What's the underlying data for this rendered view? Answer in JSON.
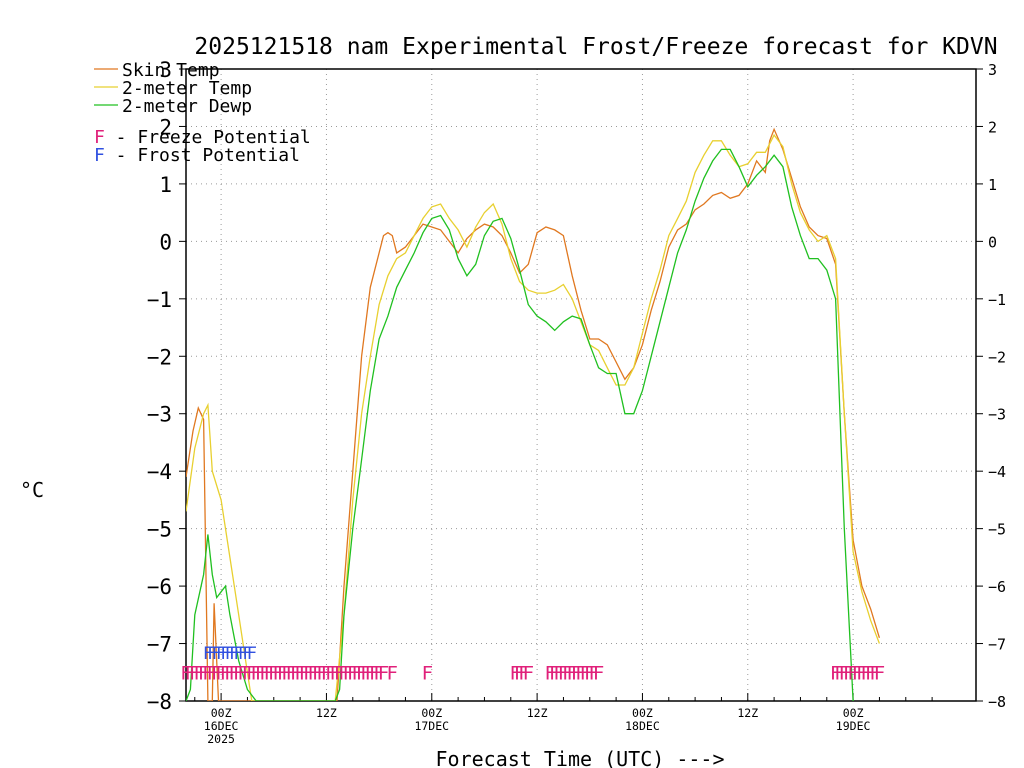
{
  "chart_data": {
    "type": "line",
    "title": "2025121518 nam Experimental Frost/Freeze forecast for KDVN",
    "ylabel": "°C",
    "xlabel": "Forecast Time (UTC) --->",
    "ylim": [
      -8,
      3
    ],
    "yticks": [
      3,
      2,
      1,
      0,
      -1,
      -2,
      -3,
      -4,
      -5,
      -6,
      -7,
      -8
    ],
    "xlim": [
      -4,
      86
    ],
    "xticks": [
      {
        "x": 0,
        "lines": [
          "00Z",
          "16DEC",
          "2025"
        ]
      },
      {
        "x": 12,
        "lines": [
          "12Z"
        ]
      },
      {
        "x": 24,
        "lines": [
          "00Z",
          "17DEC"
        ]
      },
      {
        "x": 36,
        "lines": [
          "12Z"
        ]
      },
      {
        "x": 48,
        "lines": [
          "00Z",
          "18DEC"
        ]
      },
      {
        "x": 60,
        "lines": [
          "12Z"
        ]
      },
      {
        "x": 72,
        "lines": [
          "00Z",
          "19DEC"
        ]
      }
    ],
    "grid": true,
    "series": [
      {
        "name": "Skin Temp",
        "color": "#e07820",
        "points": [
          [
            -4,
            -4.1
          ],
          [
            -3.2,
            -3.3
          ],
          [
            -2.6,
            -2.9
          ],
          [
            -2,
            -3.1
          ],
          [
            -1.5,
            -8
          ],
          [
            -1,
            -8
          ],
          [
            -0.8,
            -6.3
          ],
          [
            -0.3,
            -8
          ],
          [
            1,
            -8
          ],
          [
            2,
            -8
          ],
          [
            3,
            -8
          ],
          [
            4,
            -8
          ],
          [
            6,
            -8
          ],
          [
            8,
            -8
          ],
          [
            10,
            -8
          ],
          [
            11,
            -8
          ],
          [
            12,
            -8
          ],
          [
            13.2,
            -8
          ],
          [
            14,
            -6
          ],
          [
            15,
            -4
          ],
          [
            16,
            -2
          ],
          [
            17,
            -0.8
          ],
          [
            18,
            -0.2
          ],
          [
            18.5,
            0.1
          ],
          [
            19,
            0.15
          ],
          [
            19.5,
            0.1
          ],
          [
            20,
            -0.2
          ],
          [
            21,
            -0.1
          ],
          [
            22,
            0.1
          ],
          [
            23,
            0.3
          ],
          [
            24,
            0.25
          ],
          [
            25,
            0.2
          ],
          [
            26,
            0.0
          ],
          [
            27,
            -0.2
          ],
          [
            28,
            0.05
          ],
          [
            29,
            0.2
          ],
          [
            30,
            0.3
          ],
          [
            31,
            0.25
          ],
          [
            32,
            0.1
          ],
          [
            33,
            -0.2
          ],
          [
            34,
            -0.55
          ],
          [
            35,
            -0.4
          ],
          [
            36,
            0.15
          ],
          [
            37,
            0.25
          ],
          [
            38,
            0.2
          ],
          [
            39,
            0.1
          ],
          [
            40,
            -0.6
          ],
          [
            41,
            -1.2
          ],
          [
            42,
            -1.7
          ],
          [
            43,
            -1.7
          ],
          [
            44,
            -1.8
          ],
          [
            45,
            -2.1
          ],
          [
            46,
            -2.4
          ],
          [
            47,
            -2.2
          ],
          [
            48,
            -1.8
          ],
          [
            49,
            -1.2
          ],
          [
            50,
            -0.7
          ],
          [
            51,
            -0.1
          ],
          [
            52,
            0.2
          ],
          [
            53,
            0.3
          ],
          [
            54,
            0.55
          ],
          [
            55,
            0.65
          ],
          [
            56,
            0.8
          ],
          [
            57,
            0.85
          ],
          [
            58,
            0.75
          ],
          [
            59,
            0.8
          ],
          [
            60,
            1.0
          ],
          [
            61,
            1.4
          ],
          [
            62,
            1.2
          ],
          [
            62.5,
            1.75
          ],
          [
            63,
            1.95
          ],
          [
            64,
            1.6
          ],
          [
            65,
            1.1
          ],
          [
            66,
            0.6
          ],
          [
            67,
            0.25
          ],
          [
            68,
            0.1
          ],
          [
            69,
            0.05
          ],
          [
            70,
            -0.4
          ],
          [
            71,
            -3.0
          ],
          [
            72,
            -5.2
          ],
          [
            73,
            -6.0
          ],
          [
            74,
            -6.4
          ],
          [
            75,
            -6.9
          ]
        ]
      },
      {
        "name": "2-meter Temp",
        "color": "#e8d030",
        "points": [
          [
            -4,
            -4.7
          ],
          [
            -3,
            -3.6
          ],
          [
            -2,
            -3.0
          ],
          [
            -1.5,
            -2.85
          ],
          [
            -1,
            -4.0
          ],
          [
            0,
            -4.5
          ],
          [
            1,
            -5.5
          ],
          [
            2,
            -6.5
          ],
          [
            3,
            -7.5
          ],
          [
            3.5,
            -8
          ],
          [
            5,
            -8
          ],
          [
            8,
            -8
          ],
          [
            11,
            -8
          ],
          [
            12,
            -8
          ],
          [
            13,
            -8
          ],
          [
            14,
            -6.5
          ],
          [
            15,
            -4.5
          ],
          [
            16,
            -3.0
          ],
          [
            17,
            -2.0
          ],
          [
            18,
            -1.1
          ],
          [
            19,
            -0.6
          ],
          [
            20,
            -0.3
          ],
          [
            21,
            -0.2
          ],
          [
            22,
            0.1
          ],
          [
            23,
            0.4
          ],
          [
            24,
            0.6
          ],
          [
            25,
            0.65
          ],
          [
            26,
            0.4
          ],
          [
            27,
            0.2
          ],
          [
            28,
            -0.1
          ],
          [
            29,
            0.25
          ],
          [
            30,
            0.5
          ],
          [
            31,
            0.65
          ],
          [
            32,
            0.3
          ],
          [
            33,
            -0.3
          ],
          [
            34,
            -0.7
          ],
          [
            35,
            -0.85
          ],
          [
            36,
            -0.9
          ],
          [
            37,
            -0.9
          ],
          [
            38,
            -0.85
          ],
          [
            39,
            -0.75
          ],
          [
            40,
            -1.0
          ],
          [
            41,
            -1.4
          ],
          [
            42,
            -1.8
          ],
          [
            43,
            -1.9
          ],
          [
            44,
            -2.2
          ],
          [
            45,
            -2.5
          ],
          [
            46,
            -2.5
          ],
          [
            47,
            -2.2
          ],
          [
            48,
            -1.6
          ],
          [
            49,
            -1.0
          ],
          [
            50,
            -0.5
          ],
          [
            51,
            0.1
          ],
          [
            52,
            0.4
          ],
          [
            53,
            0.7
          ],
          [
            54,
            1.2
          ],
          [
            55,
            1.5
          ],
          [
            56,
            1.75
          ],
          [
            57,
            1.75
          ],
          [
            58,
            1.5
          ],
          [
            59,
            1.3
          ],
          [
            60,
            1.35
          ],
          [
            61,
            1.55
          ],
          [
            62,
            1.55
          ],
          [
            63,
            1.85
          ],
          [
            64,
            1.65
          ],
          [
            65,
            1.0
          ],
          [
            66,
            0.5
          ],
          [
            67,
            0.2
          ],
          [
            68,
            0.0
          ],
          [
            69,
            0.1
          ],
          [
            70,
            -0.3
          ],
          [
            71,
            -3.0
          ],
          [
            72,
            -5.4
          ],
          [
            73,
            -6.1
          ],
          [
            74,
            -6.6
          ],
          [
            75,
            -7.0
          ]
        ]
      },
      {
        "name": "2-meter Dewp",
        "color": "#20c020",
        "points": [
          [
            -4,
            -8
          ],
          [
            -3.5,
            -7.8
          ],
          [
            -3,
            -6.5
          ],
          [
            -2,
            -5.8
          ],
          [
            -1.5,
            -5.1
          ],
          [
            -1,
            -5.8
          ],
          [
            -0.5,
            -6.2
          ],
          [
            0,
            -6.1
          ],
          [
            0.5,
            -6.0
          ],
          [
            1,
            -6.5
          ],
          [
            2,
            -7.3
          ],
          [
            3,
            -7.8
          ],
          [
            4,
            -8
          ],
          [
            6,
            -8
          ],
          [
            9,
            -8
          ],
          [
            12,
            -8
          ],
          [
            13,
            -8
          ],
          [
            13.5,
            -7.8
          ],
          [
            14,
            -6.5
          ],
          [
            15,
            -5.0
          ],
          [
            16,
            -3.8
          ],
          [
            17,
            -2.6
          ],
          [
            18,
            -1.7
          ],
          [
            19,
            -1.3
          ],
          [
            20,
            -0.8
          ],
          [
            21,
            -0.5
          ],
          [
            22,
            -0.2
          ],
          [
            23,
            0.15
          ],
          [
            24,
            0.4
          ],
          [
            25,
            0.45
          ],
          [
            26,
            0.2
          ],
          [
            27,
            -0.3
          ],
          [
            28,
            -0.6
          ],
          [
            29,
            -0.4
          ],
          [
            30,
            0.1
          ],
          [
            31,
            0.35
          ],
          [
            32,
            0.4
          ],
          [
            33,
            0.05
          ],
          [
            34,
            -0.5
          ],
          [
            35,
            -1.1
          ],
          [
            36,
            -1.3
          ],
          [
            37,
            -1.4
          ],
          [
            38,
            -1.55
          ],
          [
            39,
            -1.4
          ],
          [
            40,
            -1.3
          ],
          [
            41,
            -1.35
          ],
          [
            42,
            -1.8
          ],
          [
            43,
            -2.2
          ],
          [
            44,
            -2.3
          ],
          [
            45,
            -2.3
          ],
          [
            46,
            -3.0
          ],
          [
            47,
            -3.0
          ],
          [
            48,
            -2.6
          ],
          [
            49,
            -2.0
          ],
          [
            50,
            -1.4
          ],
          [
            51,
            -0.8
          ],
          [
            52,
            -0.2
          ],
          [
            53,
            0.2
          ],
          [
            54,
            0.7
          ],
          [
            55,
            1.1
          ],
          [
            56,
            1.4
          ],
          [
            57,
            1.6
          ],
          [
            58,
            1.6
          ],
          [
            59,
            1.3
          ],
          [
            60,
            0.95
          ],
          [
            61,
            1.15
          ],
          [
            62,
            1.3
          ],
          [
            63,
            1.5
          ],
          [
            64,
            1.3
          ],
          [
            65,
            0.6
          ],
          [
            66,
            0.1
          ],
          [
            67,
            -0.3
          ],
          [
            68,
            -0.3
          ],
          [
            69,
            -0.5
          ],
          [
            70,
            -1.0
          ],
          [
            71,
            -5.0
          ],
          [
            72,
            -8
          ]
        ]
      }
    ],
    "freeze_potential": {
      "label": "F - Freeze Potential",
      "color": "#e0207a",
      "y": -7.5,
      "marker": "F",
      "hours": [
        -4,
        -3.5,
        -3,
        -2.5,
        -2,
        -1.5,
        -1,
        -0.5,
        0,
        0.5,
        1,
        1.5,
        2,
        2.5,
        3,
        3.5,
        4,
        4.5,
        5,
        5.5,
        6,
        6.5,
        7,
        7.5,
        8,
        8.5,
        9,
        9.5,
        10,
        10.5,
        11,
        11.5,
        12,
        12.5,
        13,
        13.5,
        14,
        14.5,
        15,
        15.5,
        16,
        16.5,
        17,
        17.5,
        18,
        18.5,
        19.5,
        23.5,
        33.5,
        34,
        34.5,
        35,
        37.5,
        38,
        38.5,
        39,
        39.5,
        40,
        40.5,
        41,
        41.5,
        42,
        42.5,
        43,
        70,
        70.5,
        71,
        71.5,
        72,
        72.5,
        73,
        73.5,
        74,
        74.5,
        75
      ]
    },
    "frost_potential": {
      "label": "F - Frost Potential",
      "color": "#3050e0",
      "y": -7.15,
      "marker": "F",
      "hours": [
        -1.5,
        -1,
        -0.5,
        0,
        0.5,
        1,
        1.5,
        2,
        2.5,
        3,
        3.5
      ]
    },
    "legend": {
      "placement": "top-left",
      "items": [
        "Skin Temp",
        "2-meter Temp",
        "2-meter Dewp"
      ]
    }
  }
}
